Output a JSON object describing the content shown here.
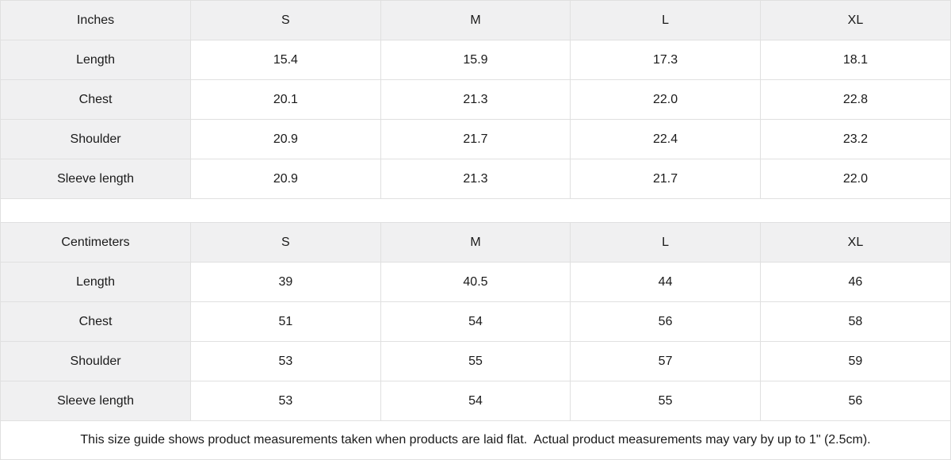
{
  "colors": {
    "header_bg": "#f0f0f1",
    "border": "#e0e0e0",
    "text": "#1a1a1a"
  },
  "tables": [
    {
      "unit_label": "Inches",
      "sizes": [
        "S",
        "M",
        "L",
        "XL"
      ],
      "rows": [
        {
          "label": "Length",
          "values": [
            "15.4",
            "15.9",
            "17.3",
            "18.1"
          ]
        },
        {
          "label": "Chest",
          "values": [
            "20.1",
            "21.3",
            "22.0",
            "22.8"
          ]
        },
        {
          "label": "Shoulder",
          "values": [
            "20.9",
            "21.7",
            "22.4",
            "23.2"
          ]
        },
        {
          "label": "Sleeve length",
          "values": [
            "20.9",
            "21.3",
            "21.7",
            "22.0"
          ]
        }
      ]
    },
    {
      "unit_label": "Centimeters",
      "sizes": [
        "S",
        "M",
        "L",
        "XL"
      ],
      "rows": [
        {
          "label": "Length",
          "values": [
            "39",
            "40.5",
            "44",
            "46"
          ]
        },
        {
          "label": "Chest",
          "values": [
            "51",
            "54",
            "56",
            "58"
          ]
        },
        {
          "label": "Shoulder",
          "values": [
            "53",
            "55",
            "57",
            "59"
          ]
        },
        {
          "label": "Sleeve length",
          "values": [
            "53",
            "54",
            "55",
            "56"
          ]
        }
      ]
    }
  ],
  "footnote": "This size guide shows product measurements taken when products are laid flat.  Actual product measurements may vary by up to 1\" (2.5cm)."
}
